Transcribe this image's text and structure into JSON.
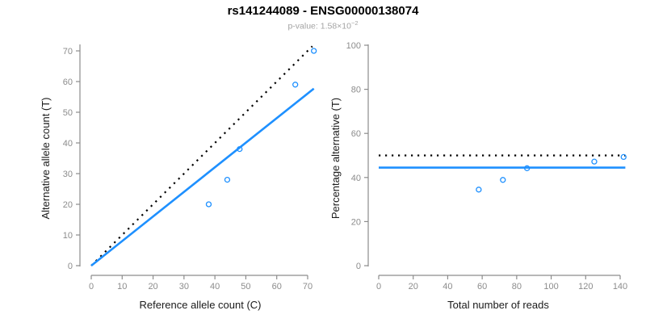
{
  "header": {
    "title": "rs141244089 - ENSG00000138074",
    "pvalue_prefix": "p-value: 1.58×10",
    "pvalue_exponent": "−2"
  },
  "colors": {
    "accent_blue": "#1E90FF",
    "identity_black": "#000000",
    "axis_gray": "#8c8c8c",
    "tick_label_gray": "#8c8c8c",
    "axis_title_dark": "#1a1a1a",
    "subtitle_gray": "#a3a3a3"
  },
  "chart_data": [
    {
      "type": "scatter",
      "position": "left",
      "xlabel": "Reference allele count (C)",
      "ylabel": "Alternative allele count (T)",
      "xlim": [
        0,
        72
      ],
      "ylim": [
        0,
        72
      ],
      "xticks": [
        0,
        10,
        20,
        30,
        40,
        50,
        60,
        70
      ],
      "yticks": [
        0,
        10,
        20,
        30,
        40,
        50,
        60,
        70
      ],
      "points": [
        [
          38,
          20
        ],
        [
          44,
          28
        ],
        [
          48,
          38
        ],
        [
          66,
          59
        ],
        [
          72,
          70
        ]
      ],
      "point_color": "#1E90FF",
      "lines": [
        {
          "name": "identity-line",
          "style": "dotted",
          "color": "#000000",
          "x1": 0,
          "y1": 0,
          "x2": 71.5,
          "y2": 71.5
        },
        {
          "name": "fit-line",
          "style": "solid",
          "color": "#1E90FF",
          "x1": 0,
          "y1": 0,
          "x2": 72,
          "y2": 57.7
        }
      ]
    },
    {
      "type": "scatter",
      "position": "right",
      "xlabel": "Total number of reads",
      "ylabel": "Percentage alternative (T)",
      "xlim": [
        0,
        143
      ],
      "ylim": [
        0,
        100
      ],
      "xticks": [
        0,
        20,
        40,
        60,
        80,
        100,
        120,
        140
      ],
      "yticks": [
        0,
        20,
        40,
        60,
        80,
        100
      ],
      "points": [
        [
          58,
          34.5
        ],
        [
          72,
          38.9
        ],
        [
          86,
          44.2
        ],
        [
          125,
          47.2
        ],
        [
          142,
          49.3
        ]
      ],
      "point_color": "#1E90FF",
      "lines": [
        {
          "name": "identity-line",
          "style": "dotted",
          "color": "#000000",
          "x1": 0,
          "y1": 50,
          "x2": 143,
          "y2": 50
        },
        {
          "name": "fit-line",
          "style": "solid",
          "color": "#1E90FF",
          "x1": 0,
          "y1": 44.5,
          "x2": 143,
          "y2": 44.5
        }
      ]
    }
  ]
}
